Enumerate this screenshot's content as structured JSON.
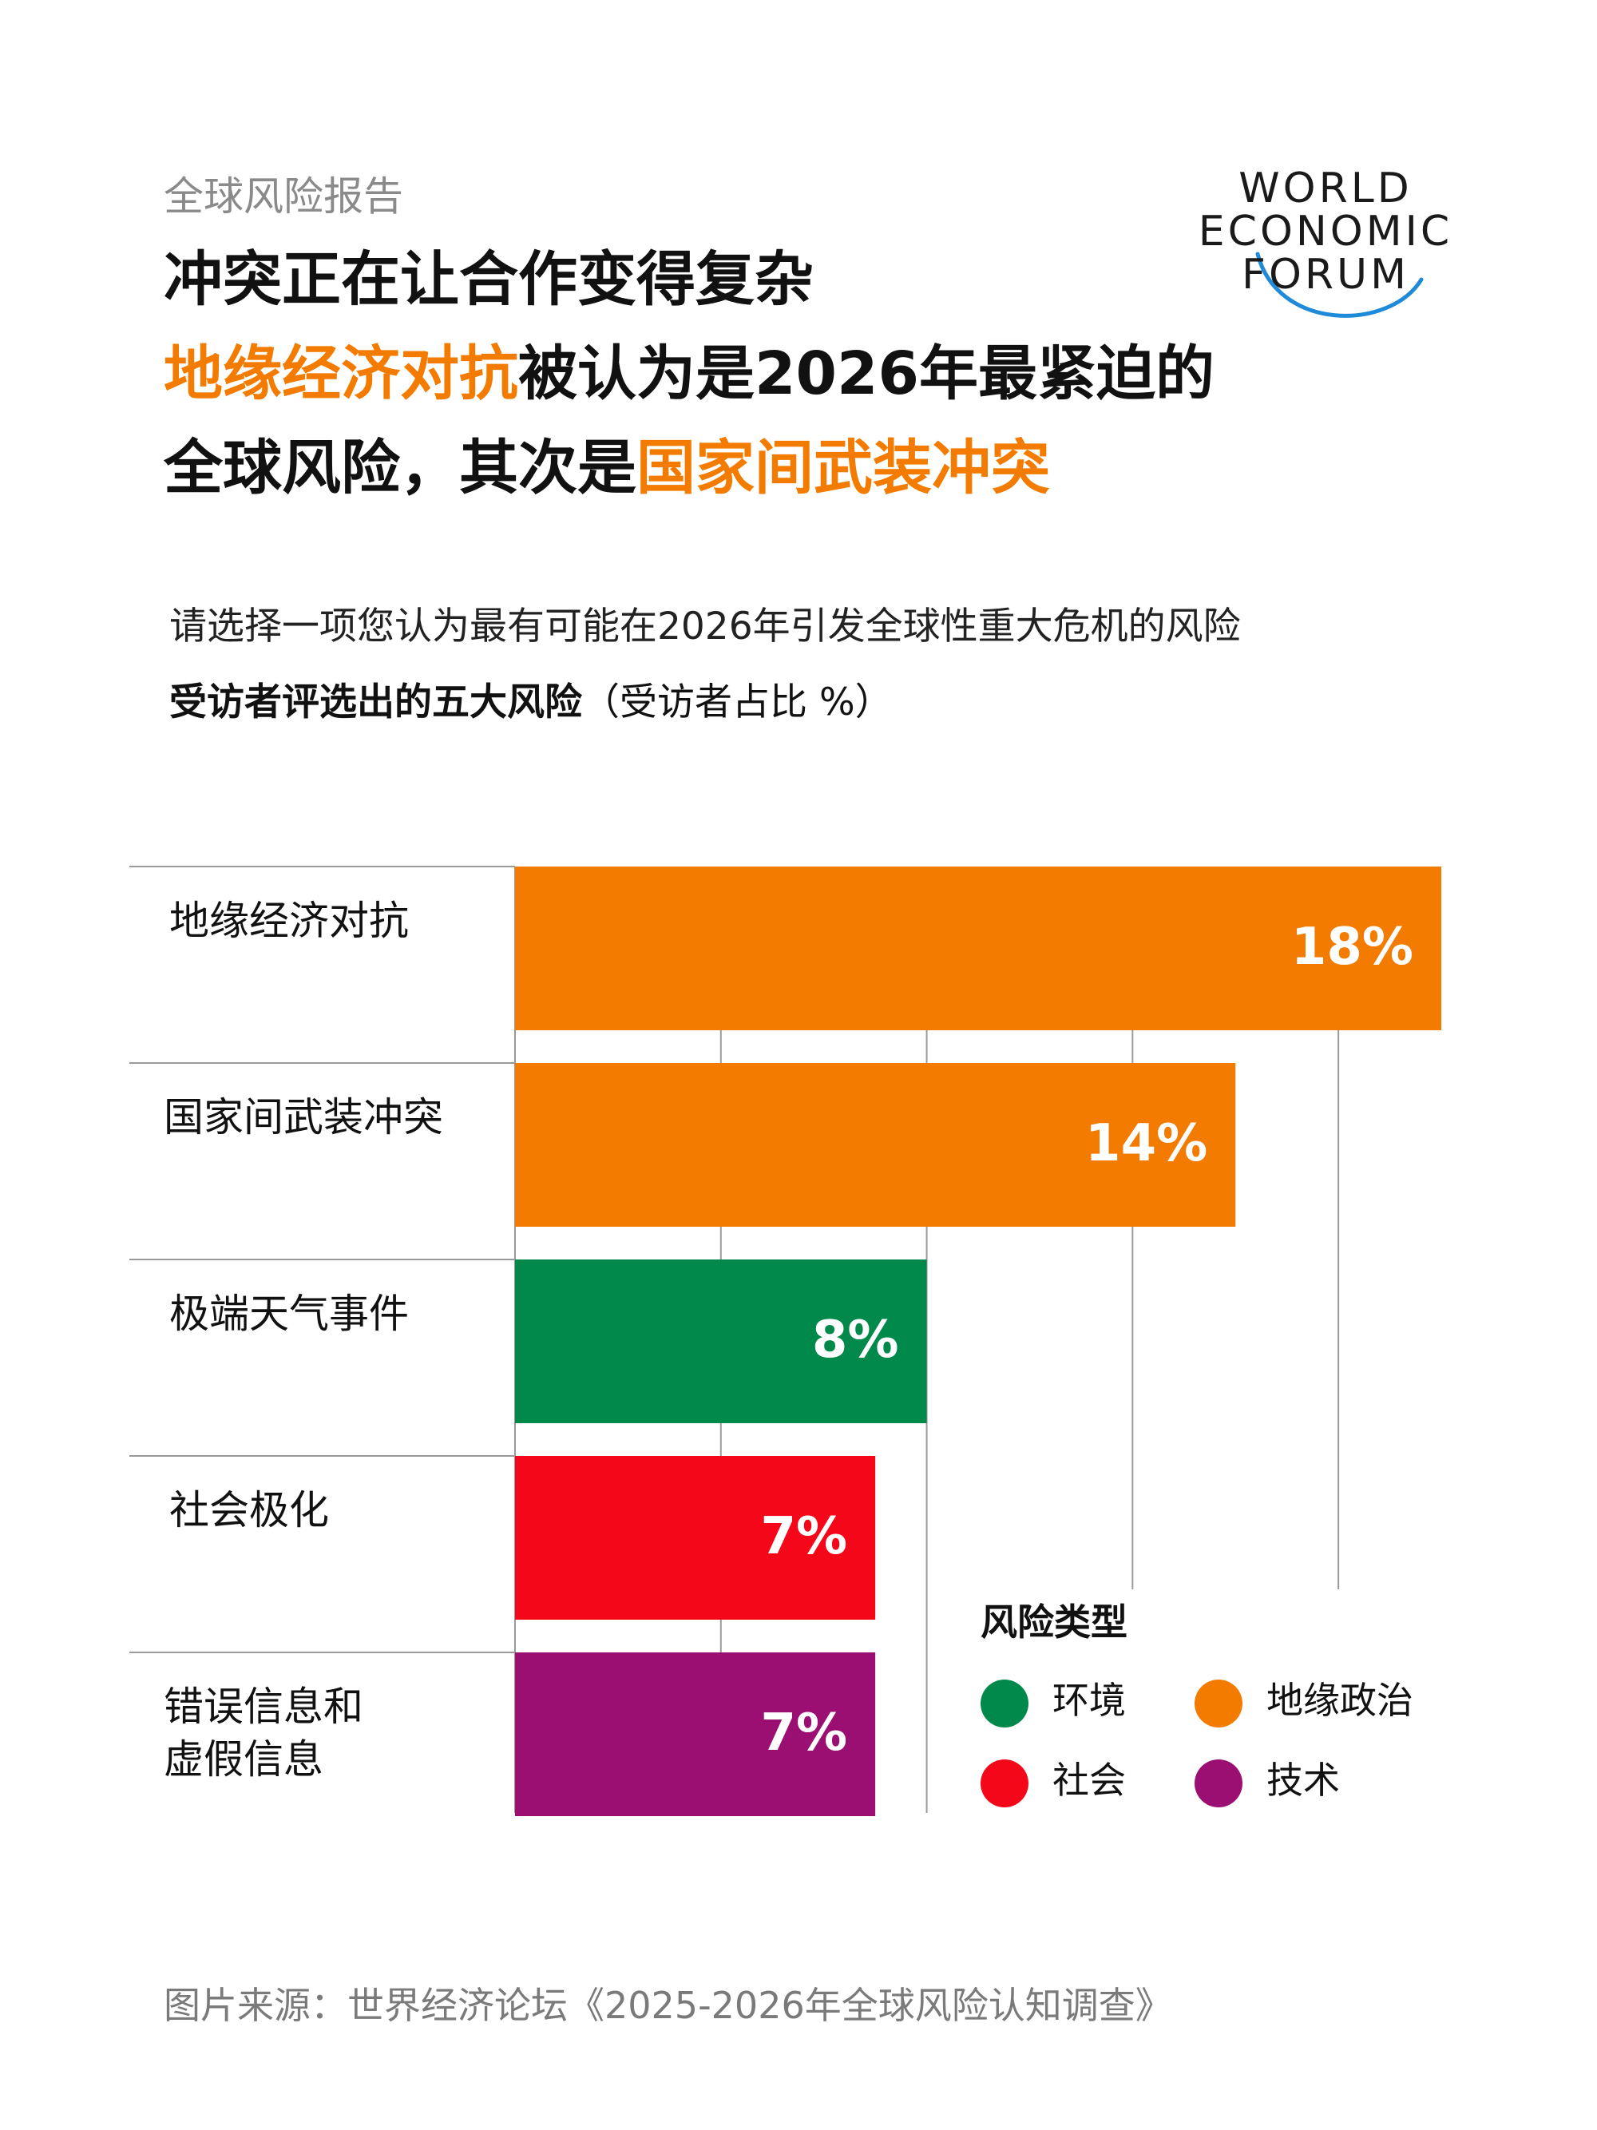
{
  "header": {
    "kicker": "全球风险报告",
    "line1": "冲突正在让合作变得复杂",
    "line2_accent": "地缘经济对抗",
    "line2_rest": "被认为是2026年最紧迫的",
    "line3_start": "全球风险，其次是",
    "line3_accent": "国家间武装冲突",
    "accent_color": "#F27B00"
  },
  "logo": {
    "line1": "WORLD",
    "line2": "ECONOMIC",
    "line3": "FORUM",
    "arc_color": "#1F8BD8"
  },
  "question": "请选择一项您认为最有可能在2026年引发全球性重大危机的风险",
  "subtitle_bold": "受访者评选出的五大风险",
  "subtitle_rest": "（受访者占比 %）",
  "chart_data": {
    "type": "bar",
    "orientation": "horizontal",
    "categories": [
      "地缘经济对抗",
      "国家间武装冲突",
      "极端天气事件",
      "社会极化",
      "错误信息和\n虚假信息"
    ],
    "values": [
      18,
      14,
      8,
      7,
      7
    ],
    "value_labels": [
      "18%",
      "14%",
      "8%",
      "7%",
      "7%"
    ],
    "risk_types": [
      "地缘政治",
      "地缘政治",
      "环境",
      "社会",
      "技术"
    ],
    "xlim": [
      0,
      18
    ],
    "gridlines": [
      4,
      8,
      12,
      16
    ],
    "grid": true
  },
  "legend": {
    "title": "风险类型",
    "items": [
      {
        "label": "环境",
        "color": "#00894A"
      },
      {
        "label": "地缘政治",
        "color": "#F27B00"
      },
      {
        "label": "社会",
        "color": "#F5071A"
      },
      {
        "label": "技术",
        "color": "#9C0F72"
      }
    ]
  },
  "source": "图片来源：世界经济论坛《2025-2026年全球风险认知调查》"
}
